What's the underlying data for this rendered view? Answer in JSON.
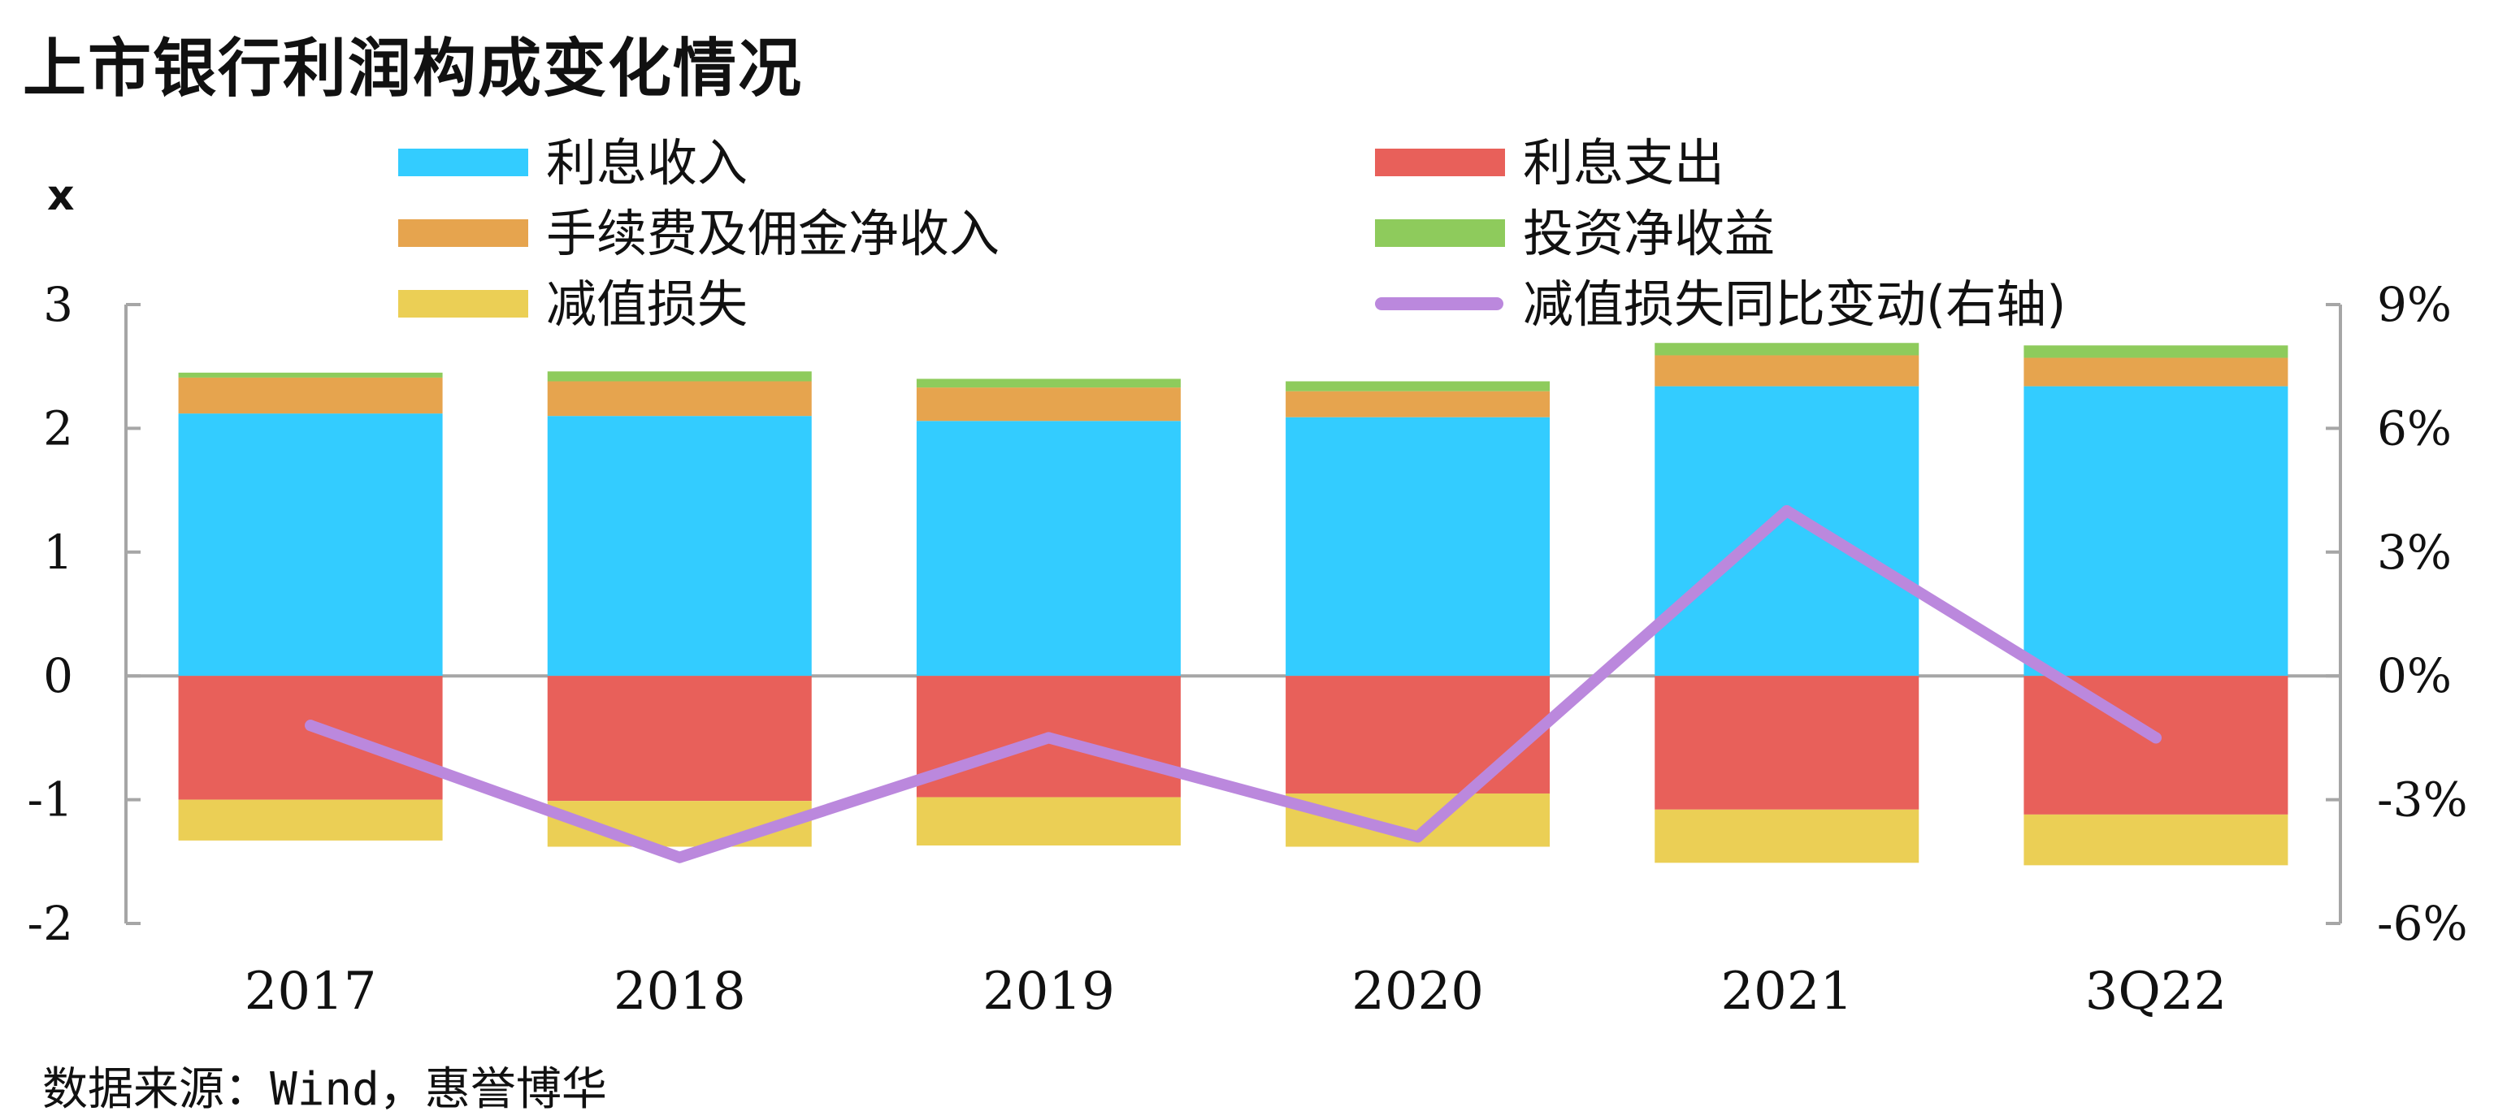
{
  "title": "上市银行利润构成变化情况",
  "source": "数据来源：Wind，惠誉博华",
  "chart_data": {
    "type": "bar",
    "stacked": true,
    "ylabel": "x",
    "categories": [
      "2017",
      "2018",
      "2019",
      "2020",
      "2021",
      "3Q22"
    ],
    "y_left": {
      "min": -2,
      "max": 3,
      "ticks": [
        "-2",
        "-1",
        "0",
        "1",
        "2",
        "3"
      ]
    },
    "y_right": {
      "min": -6,
      "max": 9,
      "ticks": [
        "-6%",
        "-3%",
        "0%",
        "3%",
        "6%",
        "9%"
      ]
    },
    "series": [
      {
        "name": "利息收入",
        "color": "#33CCFF",
        "axis": "left",
        "values": [
          2.12,
          2.1,
          2.06,
          2.09,
          2.34,
          2.34
        ]
      },
      {
        "name": "利息支出",
        "color": "#E8605A",
        "axis": "left",
        "values": [
          -1.0,
          -1.01,
          -0.98,
          -0.95,
          -1.08,
          -1.12
        ]
      },
      {
        "name": "手续费及佣金净收入",
        "color": "#E6A44E",
        "axis": "left",
        "values": [
          0.29,
          0.28,
          0.27,
          0.21,
          0.25,
          0.23
        ]
      },
      {
        "name": "投资净收益",
        "color": "#8ECB5C",
        "axis": "left",
        "values": [
          0.04,
          0.08,
          0.07,
          0.08,
          0.1,
          0.1
        ]
      },
      {
        "name": "减值损失",
        "color": "#EBCF55",
        "axis": "left",
        "values": [
          -0.33,
          -0.37,
          -0.39,
          -0.43,
          -0.43,
          -0.41
        ]
      },
      {
        "name": "减值损失同比变动(右轴)",
        "color": "#BB88DD",
        "axis": "right",
        "type": "line",
        "values": [
          -1.2,
          -4.4,
          -1.5,
          -3.9,
          4.0,
          -1.5
        ]
      }
    ],
    "grid": false,
    "legend_position": "top"
  }
}
